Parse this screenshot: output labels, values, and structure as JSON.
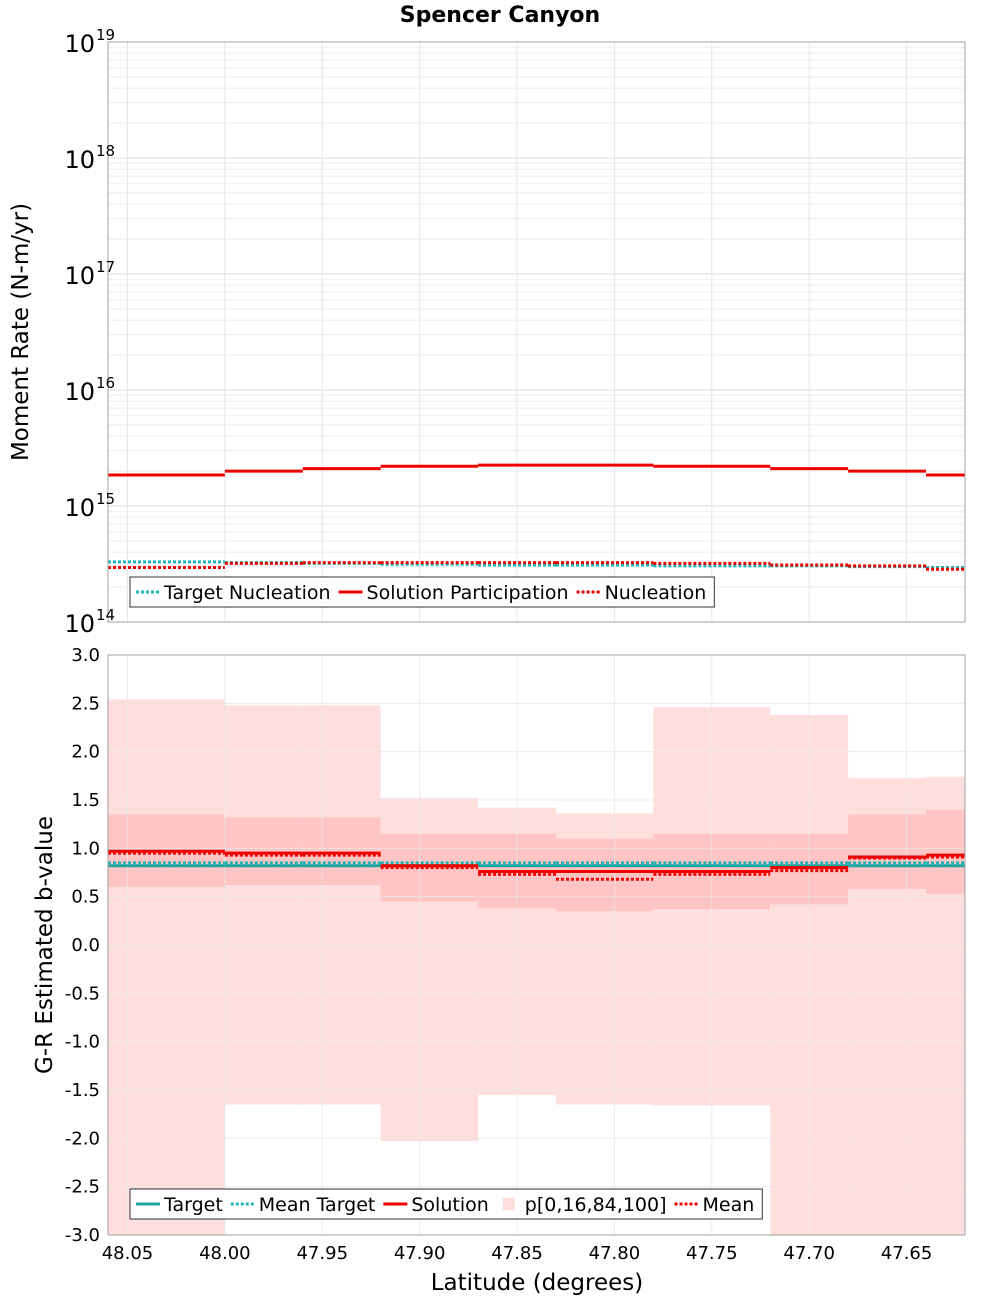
{
  "chart_data": [
    {
      "type": "line",
      "title": "Spencer Canyon",
      "xlabel": "Latitude (degrees)",
      "ylabel": "Moment Rate (N-m/yr)",
      "yscale": "log",
      "ylim": [
        100000000000000.0,
        1e+19
      ],
      "xlim": [
        48.06,
        47.62
      ],
      "y_ticks": [
        {
          "base": "10",
          "exp": "14",
          "value": 14
        },
        {
          "base": "10",
          "exp": "15",
          "value": 15
        },
        {
          "base": "10",
          "exp": "16",
          "value": 16
        },
        {
          "base": "10",
          "exp": "17",
          "value": 17
        },
        {
          "base": "10",
          "exp": "18",
          "value": 18
        },
        {
          "base": "10",
          "exp": "19",
          "value": 19
        }
      ],
      "bin_edges": [
        48.06,
        48.0,
        47.96,
        47.92,
        47.87,
        47.83,
        47.78,
        47.72,
        47.68,
        47.64,
        47.62
      ],
      "series": [
        {
          "name": "Target Nucleation",
          "style": "dotted",
          "color": "#1fb5b5",
          "values": [
            330000000000000.0,
            325000000000000.0,
            320000000000000.0,
            315000000000000.0,
            310000000000000.0,
            310000000000000.0,
            305000000000000.0,
            305000000000000.0,
            300000000000000.0,
            295000000000000.0
          ]
        },
        {
          "name": "Solution Participation",
          "style": "solid",
          "color": "#ee0000",
          "values": [
            1850000000000000.0,
            2000000000000000.0,
            2100000000000000.0,
            2200000000000000.0,
            2250000000000000.0,
            2250000000000000.0,
            2200000000000000.0,
            2100000000000000.0,
            2000000000000000.0,
            1850000000000000.0
          ]
        },
        {
          "name": "Nucleation",
          "style": "dotted",
          "color": "#ee0000",
          "values": [
            295000000000000.0,
            320000000000000.0,
            325000000000000.0,
            325000000000000.0,
            325000000000000.0,
            325000000000000.0,
            320000000000000.0,
            310000000000000.0,
            305000000000000.0,
            285000000000000.0
          ]
        }
      ],
      "legend": {
        "position": "bottom-left",
        "entries": [
          "Target Nucleation",
          "Solution Participation",
          "Nucleation"
        ]
      }
    },
    {
      "type": "line",
      "xlabel": "Latitude (degrees)",
      "ylabel": "G-R Estimated b-value",
      "ylim": [
        -3.0,
        3.0
      ],
      "xlim": [
        48.06,
        47.62
      ],
      "y_ticks": [
        "-3.0",
        "-2.5",
        "-2.0",
        "-1.5",
        "-1.0",
        "-0.5",
        "0.0",
        "0.5",
        "1.0",
        "1.5",
        "2.0",
        "2.5",
        "3.0"
      ],
      "x_ticks": [
        "48.05",
        "48.00",
        "47.95",
        "47.90",
        "47.85",
        "47.80",
        "47.75",
        "47.70",
        "47.65"
      ],
      "bin_edges": [
        48.06,
        48.0,
        47.96,
        47.92,
        47.87,
        47.83,
        47.78,
        47.72,
        47.68,
        47.64,
        47.62
      ],
      "bands": {
        "name": "p[0,16,84,100]",
        "p0": [
          -3.0,
          -1.65,
          -1.65,
          -2.03,
          -1.55,
          -1.65,
          -1.66,
          -3.0,
          -3.0,
          -3.0
        ],
        "p16": [
          0.6,
          0.62,
          0.62,
          0.45,
          0.38,
          0.35,
          0.37,
          0.42,
          0.58,
          0.53
        ],
        "p84": [
          1.35,
          1.32,
          1.32,
          1.15,
          1.15,
          1.1,
          1.15,
          1.15,
          1.35,
          1.4
        ],
        "p100": [
          2.54,
          2.48,
          2.48,
          1.52,
          1.42,
          1.36,
          2.46,
          2.38,
          1.73,
          1.74
        ]
      },
      "series": [
        {
          "name": "Target",
          "style": "solid",
          "color": "#1fa6a0",
          "values": [
            0.82,
            0.82,
            0.82,
            0.82,
            0.82,
            0.82,
            0.82,
            0.82,
            0.82,
            0.82
          ]
        },
        {
          "name": "Mean Target",
          "style": "dotted",
          "color": "#1fb5b5",
          "values": [
            0.85,
            0.85,
            0.85,
            0.85,
            0.85,
            0.85,
            0.85,
            0.85,
            0.85,
            0.85
          ]
        },
        {
          "name": "Solution",
          "style": "solid",
          "color": "#ee0000",
          "values": [
            0.97,
            0.95,
            0.95,
            0.82,
            0.76,
            0.76,
            0.76,
            0.8,
            0.91,
            0.93
          ]
        },
        {
          "name": "Mean",
          "style": "dotted",
          "color": "#ee0000",
          "values": [
            0.95,
            0.93,
            0.93,
            0.8,
            0.73,
            0.68,
            0.73,
            0.77,
            0.9,
            0.91
          ]
        }
      ],
      "legend": {
        "position": "bottom-left",
        "entries": [
          "Target",
          "Mean Target",
          "Solution",
          "p[0,16,84,100]",
          "Mean"
        ]
      }
    }
  ],
  "colors": {
    "band_outer": "#ffdede",
    "band_inner": "#ffc4c4",
    "grid": "#e6e6e6",
    "frame": "#a0a0a0"
  }
}
